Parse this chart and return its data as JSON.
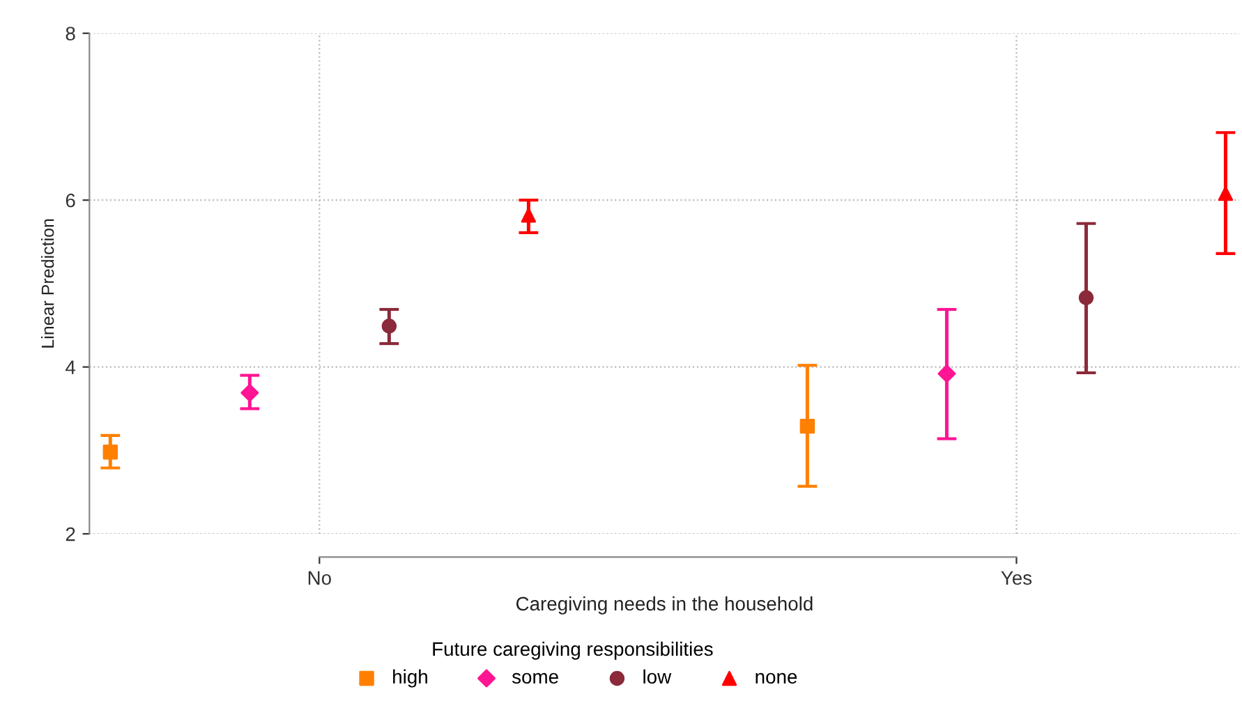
{
  "chart_data": {
    "type": "scatter",
    "xlabel": "Caregiving needs in the household",
    "ylabel": "Linear Prediction",
    "legend_title": "Future caregiving responsibilities",
    "legend": "bottom",
    "grid": true,
    "line_style": "dotted",
    "categories": [
      "No",
      "Yes"
    ],
    "ylim": [
      2,
      8
    ],
    "yticks": [
      2,
      4,
      6,
      8
    ],
    "series": [
      {
        "name": "high",
        "color": "#ff8000",
        "marker": "square",
        "values": [
          2.98,
          3.29
        ],
        "errors": [
          [
            2.79,
            3.18
          ],
          [
            2.57,
            4.02
          ]
        ]
      },
      {
        "name": "some",
        "color": "#ff1493",
        "marker": "diamond",
        "values": [
          3.69,
          3.92
        ],
        "errors": [
          [
            3.5,
            3.9
          ],
          [
            3.14,
            4.69
          ]
        ]
      },
      {
        "name": "low",
        "color": "#8b2a3a",
        "marker": "circle",
        "values": [
          4.49,
          4.83
        ],
        "errors": [
          [
            4.28,
            4.69
          ],
          [
            3.93,
            5.72
          ]
        ]
      },
      {
        "name": "none",
        "color": "#ff0000",
        "marker": "triangle",
        "values": [
          5.82,
          6.08
        ],
        "errors": [
          [
            5.61,
            6.0
          ],
          [
            5.36,
            6.81
          ]
        ]
      }
    ]
  }
}
